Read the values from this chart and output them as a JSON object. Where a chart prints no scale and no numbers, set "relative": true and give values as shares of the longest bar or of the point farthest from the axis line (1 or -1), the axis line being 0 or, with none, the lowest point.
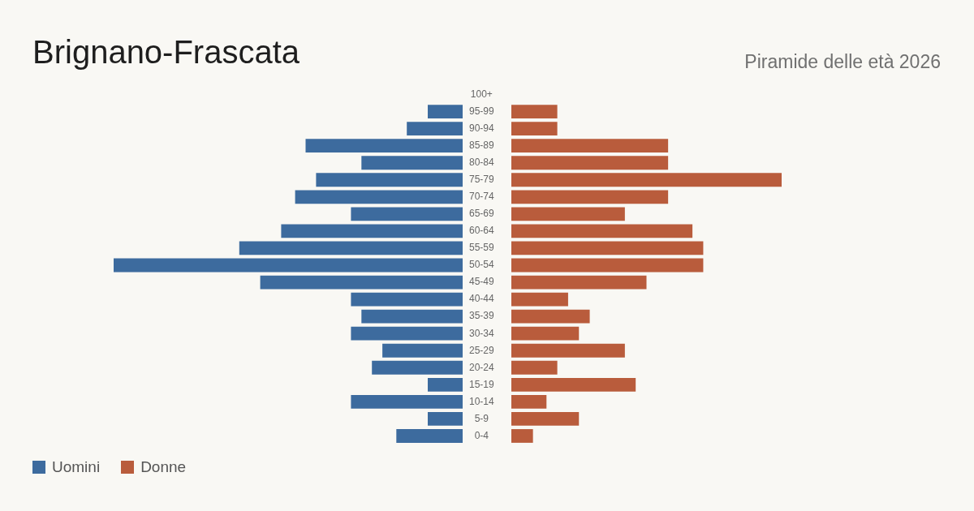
{
  "chart_data": [
    {
      "type": "bar",
      "orientation": "horizontal",
      "relative": true,
      "title": "Brignano-Frascata",
      "legend": "bottom left",
      "categories": [
        "100+",
        "95-99",
        "90-94",
        "85-89",
        "80-84",
        "75-79",
        "70-74",
        "65-69",
        "60-64",
        "55-59",
        "50-54",
        "45-49",
        "40-44",
        "35-39",
        "30-34",
        "25-29",
        "20-24",
        "15-19",
        "10-14",
        "5-9",
        "0-4"
      ],
      "series": [
        {
          "name": "Uomini",
          "color": "#3d6b9e",
          "values": [
            0,
            0.1,
            0.16,
            0.45,
            0.29,
            0.42,
            0.48,
            0.32,
            0.52,
            0.64,
            1,
            0.58,
            0.32,
            0.29,
            0.32,
            0.23,
            0.26,
            0.1,
            0.32,
            0.1,
            0.19
          ]
        }
      ]
    },
    {
      "type": "bar",
      "orientation": "horizontal",
      "relative": true,
      "subtitle": "Piramide delle età 2026",
      "legend": "bottom left",
      "categories": [
        null,
        null,
        null,
        null,
        null,
        null,
        null,
        null,
        null,
        null,
        null,
        null,
        null,
        null,
        null,
        null,
        null,
        null,
        null,
        null,
        null
      ],
      "series": [
        {
          "name": "Donne",
          "color": "#b95c3c",
          "values": [
            0,
            0.17,
            0.17,
            0.58,
            0.58,
            1,
            0.58,
            0.42,
            0.67,
            0.71,
            0.71,
            0.5,
            0.21,
            0.29,
            0.25,
            0.42,
            0.17,
            0.46,
            0.13,
            0.25,
            0.08
          ]
        }
      ]
    }
  ]
}
